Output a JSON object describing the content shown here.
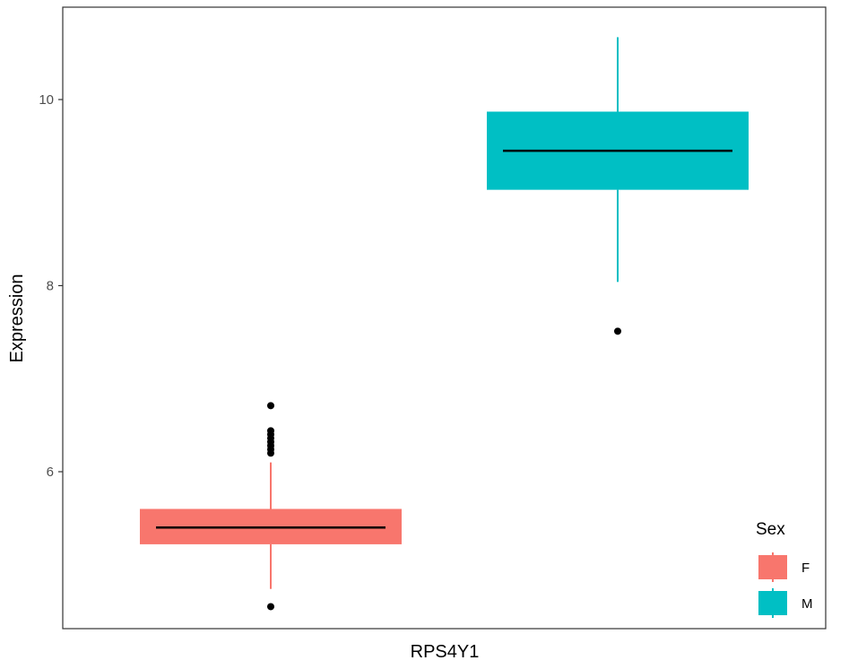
{
  "chart_data": {
    "type": "boxplot",
    "xlabel": "RPS4Y1",
    "ylabel": "Expression",
    "ylim": [
      4.4,
      10.7
    ],
    "yticks": [
      6,
      8,
      10
    ],
    "grid": false,
    "legend": {
      "title": "Sex",
      "position": "bottom-right",
      "entries": [
        {
          "label": "F",
          "color": "#F8766D"
        },
        {
          "label": "M",
          "color": "#00BFC4"
        }
      ]
    },
    "series": [
      {
        "name": "F",
        "color": "#F8766D",
        "whisker_low": 4.74,
        "q1": 5.22,
        "median": 5.4,
        "q3": 5.6,
        "whisker_high": 6.1,
        "outliers": [
          4.55,
          6.2,
          6.24,
          6.28,
          6.32,
          6.36,
          6.4,
          6.44,
          6.71
        ]
      },
      {
        "name": "M",
        "color": "#00BFC4",
        "whisker_low": 8.04,
        "q1": 9.03,
        "median": 9.45,
        "q3": 9.87,
        "whisker_high": 10.67,
        "outliers": [
          7.51
        ]
      }
    ]
  }
}
